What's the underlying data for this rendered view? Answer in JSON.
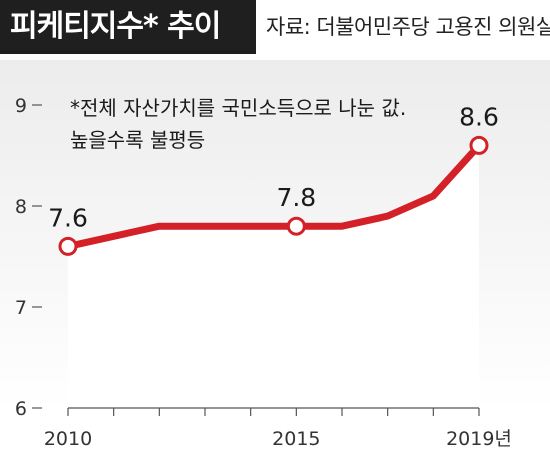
{
  "header": {
    "title": "피케티지수* 추이",
    "source": "자료: 더불어민주당 고용진 의원실"
  },
  "note": {
    "line1": "*전체 자산가치를 국민소득으로 나눈 값.",
    "line2": "높을수록 불평등"
  },
  "colors": {
    "title_bg": "#1f1f1f",
    "line": "#d42027",
    "area_top": "#efefef",
    "marker_fill": "#ffffff"
  },
  "chart_data": {
    "type": "line",
    "x": [
      2010,
      2011,
      2012,
      2013,
      2014,
      2015,
      2016,
      2017,
      2018,
      2019
    ],
    "values": [
      7.6,
      7.7,
      7.8,
      7.8,
      7.8,
      7.8,
      7.8,
      7.9,
      8.1,
      8.6
    ],
    "x_tick_labels": [
      "2010",
      "2015",
      "2019년"
    ],
    "x_tick_positions": [
      2010,
      2015,
      2019
    ],
    "y_ticks": [
      "6",
      "7",
      "8",
      "9"
    ],
    "ylim": [
      6,
      9
    ],
    "labeled_points": [
      {
        "x": 2010,
        "label": "7.6"
      },
      {
        "x": 2015,
        "label": "7.8"
      },
      {
        "x": 2019,
        "label": "8.6"
      }
    ]
  }
}
